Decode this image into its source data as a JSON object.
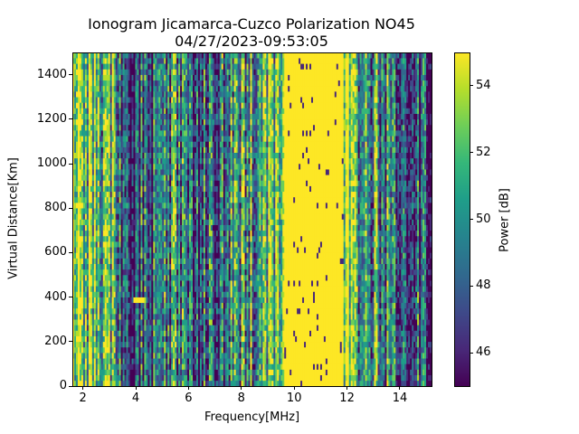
{
  "chart_data": {
    "type": "heatmap",
    "title": "Ionogram Jicamarca-Cuzco Polarization NO45",
    "subtitle": "04/27/2023-09:53:05",
    "xlabel": "Frequency[MHz]",
    "ylabel": "Virtual Distance[Km]",
    "colorbar_label": "Power [dB]",
    "xlim": [
      1.6,
      15.2
    ],
    "ylim": [
      0,
      1500
    ],
    "clim": [
      45,
      55
    ],
    "colormap": "viridis",
    "x_ticks": [
      2,
      4,
      6,
      8,
      10,
      12,
      14
    ],
    "x_tick_labels": [
      "2",
      "4",
      "6",
      "8",
      "10",
      "12",
      "14"
    ],
    "y_ticks": [
      0,
      200,
      400,
      600,
      800,
      1000,
      1200,
      1400
    ],
    "y_tick_labels": [
      "0",
      "200",
      "400",
      "600",
      "800",
      "1000",
      "1200",
      "1400"
    ],
    "colorbar_ticks": [
      46,
      48,
      50,
      52,
      54
    ],
    "colorbar_tick_labels": [
      "46",
      "48",
      "50",
      "52",
      "54"
    ],
    "frequency_profile": {
      "note_type": "approximate mean power (dB) across frequency",
      "freq_mhz": [
        1.6,
        2.0,
        2.5,
        3.0,
        3.5,
        3.8,
        4.2,
        4.6,
        5.0,
        5.5,
        6.0,
        6.5,
        7.0,
        7.5,
        8.0,
        8.5,
        9.0,
        9.5,
        10.0,
        10.5,
        11.0,
        11.5,
        11.9,
        12.3,
        12.8,
        13.2,
        13.6,
        14.0,
        14.5,
        15.2
      ],
      "power_db": [
        54,
        53,
        52,
        51.5,
        48,
        47,
        48,
        47,
        51,
        49,
        48.5,
        49,
        48.5,
        49,
        50,
        51,
        52,
        53,
        54.5,
        55,
        55,
        55,
        54,
        51,
        50,
        50,
        49.5,
        49,
        48,
        47
      ]
    },
    "features": [
      {
        "freq_range_mhz": [
          9.6,
          11.9
        ],
        "distance_range_km": [
          0,
          1500
        ],
        "power_db": 55
      },
      {
        "freq_range_mhz": [
          3.9,
          4.3
        ],
        "distance_range_km": [
          370,
          390
        ],
        "power_db": 55
      }
    ]
  }
}
